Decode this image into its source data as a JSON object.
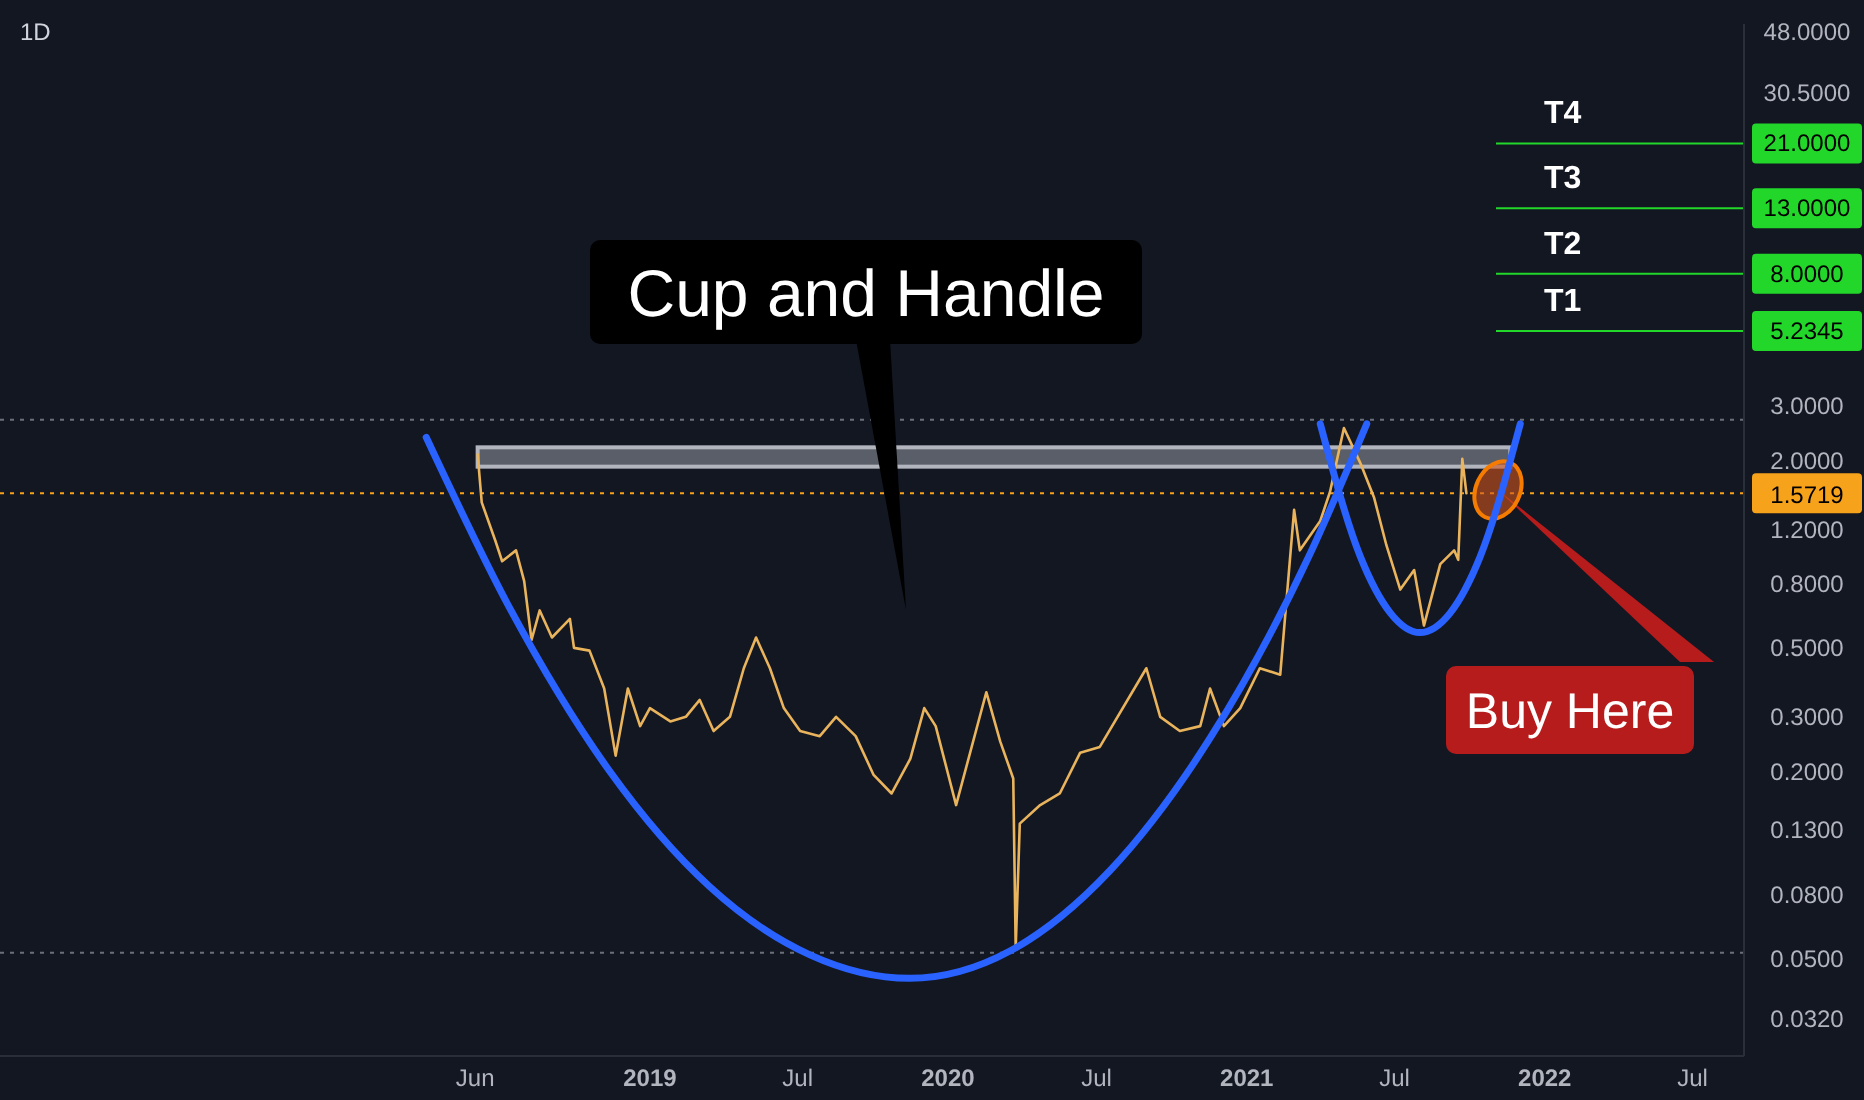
{
  "chart_data": {
    "type": "line",
    "title": "1D",
    "log": "y",
    "grid": false,
    "xlim": [
      "2016-10-27",
      "2022-09-02"
    ],
    "xticks": [
      {
        "value": "2018-06-01",
        "label": "Jun"
      },
      {
        "value": "2019-01-01",
        "label": "2019"
      },
      {
        "value": "2019-07-01",
        "label": "Jul"
      },
      {
        "value": "2020-01-01",
        "label": "2020"
      },
      {
        "value": "2020-07-01",
        "label": "Jul"
      },
      {
        "value": "2021-01-01",
        "label": "2021"
      },
      {
        "value": "2021-07-01",
        "label": "Jul"
      },
      {
        "value": "2022-01-01",
        "label": "2022"
      },
      {
        "value": "2022-07-01",
        "label": "Jul"
      }
    ],
    "ylim": [
      0.0243,
      50.9
    ],
    "yticks": [
      {
        "value": 48,
        "label": "48.0000"
      },
      {
        "value": 30.5,
        "label": "30.5000"
      },
      {
        "value": 21,
        "label": "21.0000"
      },
      {
        "value": 13,
        "label": "13.0000"
      },
      {
        "value": 8,
        "label": "8.0000"
      },
      {
        "value": 5.2345,
        "label": "5.2345"
      },
      {
        "value": 3,
        "label": "3.0000"
      },
      {
        "value": 2,
        "label": "2.0000"
      },
      {
        "value": 1.2,
        "label": "1.2000"
      },
      {
        "value": 0.8,
        "label": "0.8000"
      },
      {
        "value": 0.5,
        "label": "0.5000"
      },
      {
        "value": 0.3,
        "label": "0.3000"
      },
      {
        "value": 0.2,
        "label": "0.2000"
      },
      {
        "value": 0.13,
        "label": "0.1300"
      },
      {
        "value": 0.08,
        "label": "0.0800"
      },
      {
        "value": 0.05,
        "label": "0.0500"
      },
      {
        "value": 0.032,
        "label": "0.0320"
      }
    ],
    "series": [
      {
        "color": "#e9b45c",
        "x": [
          "2018-06-04",
          "2018-06-09",
          "2018-06-26",
          "2018-07-04",
          "2018-07-21",
          "2018-07-31",
          "2018-08-09",
          "2018-08-19",
          "2018-09-03",
          "2018-09-25",
          "2018-09-30",
          "2018-10-19",
          "2018-11-06",
          "2018-11-20",
          "2018-12-05",
          "2018-12-20",
          "2019-01-01",
          "2019-01-26",
          "2019-02-14",
          "2019-03-03",
          "2019-03-20",
          "2019-04-09",
          "2019-04-26",
          "2019-05-11",
          "2019-05-28",
          "2019-06-14",
          "2019-07-04",
          "2019-07-28",
          "2019-08-17",
          "2019-09-10",
          "2019-10-02",
          "2019-10-24",
          "2019-11-16",
          "2019-12-03",
          "2019-12-17",
          "2020-01-11",
          "2020-02-17",
          "2020-03-05",
          "2020-03-21",
          "2020-03-24",
          "2020-03-29",
          "2020-04-23",
          "2020-05-17",
          "2020-06-11",
          "2020-07-05",
          "2020-08-31",
          "2020-09-17",
          "2020-10-11",
          "2020-11-05",
          "2020-11-17",
          "2020-12-04",
          "2020-12-24",
          "2021-01-17",
          "2021-02-11",
          "2021-02-28",
          "2021-03-07",
          "2021-04-01",
          "2021-04-13",
          "2021-04-30",
          "2021-05-20",
          "2021-06-06",
          "2021-06-21",
          "2021-07-08",
          "2021-07-25",
          "2021-08-06",
          "2021-08-26",
          "2021-09-12",
          "2021-09-17",
          "2021-09-22",
          "2021-09-27"
        ],
        "values": [
          2.1,
          1.47,
          1.1,
          0.95,
          1.03,
          0.82,
          0.53,
          0.66,
          0.54,
          0.62,
          0.5,
          0.49,
          0.37,
          0.225,
          0.37,
          0.28,
          0.32,
          0.29,
          0.3,
          0.34,
          0.27,
          0.3,
          0.43,
          0.54,
          0.43,
          0.32,
          0.27,
          0.26,
          0.3,
          0.26,
          0.195,
          0.17,
          0.22,
          0.32,
          0.28,
          0.156,
          0.36,
          0.25,
          0.19,
          0.054,
          0.136,
          0.156,
          0.17,
          0.23,
          0.24,
          0.43,
          0.3,
          0.27,
          0.28,
          0.37,
          0.28,
          0.32,
          0.43,
          0.41,
          1.39,
          1.03,
          1.28,
          1.59,
          2.55,
          1.97,
          1.52,
          1.07,
          0.77,
          0.89,
          0.59,
          0.93,
          1.03,
          0.96,
          2.03,
          1.5719
        ]
      },
      {
        "color": "#2962ff",
        "x": [
          "2018-04-02",
          "2018-07-14",
          "2018-11-13",
          "2019-03-15",
          "2019-07-16",
          "2019-11-15",
          "2020-03-17",
          "2020-07-17",
          "2020-11-17",
          "2021-03-20",
          "2021-05-28"
        ],
        "values": [
          2.38,
          0.666,
          0.2,
          0.0853,
          0.0514,
          0.0432,
          0.0529,
          0.0957,
          0.256,
          1.01,
          2.63
        ]
      },
      {
        "color": "#2962ff",
        "x": [
          "2021-04-01",
          "2021-05-20",
          "2021-06-26",
          "2021-08-01",
          "2021-09-07",
          "2021-10-14",
          "2021-12-02"
        ],
        "values": [
          2.63,
          0.985,
          0.647,
          0.56,
          0.647,
          0.985,
          2.63
        ]
      }
    ],
    "ref_lines": [
      {
        "axis": "y",
        "value": 5.2345,
        "label": "T1",
        "color": "#22d72a",
        "line_style": "solid"
      },
      {
        "axis": "y",
        "value": 8,
        "label": "T2",
        "color": "#22d72a",
        "line_style": "solid"
      },
      {
        "axis": "y",
        "value": 13,
        "label": "T3",
        "color": "#22d72a",
        "line_style": "solid"
      },
      {
        "axis": "y",
        "value": 21,
        "label": "T4",
        "color": "#22d72a",
        "line_style": "solid"
      },
      {
        "axis": "y",
        "value": 1.5719,
        "label": "1.5719",
        "color": "#f7a21b",
        "line_style": "dotted"
      },
      {
        "axis": "y",
        "value": 2.71,
        "color": "#6b6f7a",
        "line_style": "dotted"
      },
      {
        "axis": "y",
        "value": 0.0522,
        "color": "#6b6f7a",
        "line_style": "dotted"
      }
    ],
    "bands": [
      {
        "axis": "y",
        "from": 1.915,
        "to": 2.21,
        "color": "#b2b5be"
      }
    ],
    "annotations": [
      "Cup and Handle",
      "Buy Here"
    ]
  }
}
